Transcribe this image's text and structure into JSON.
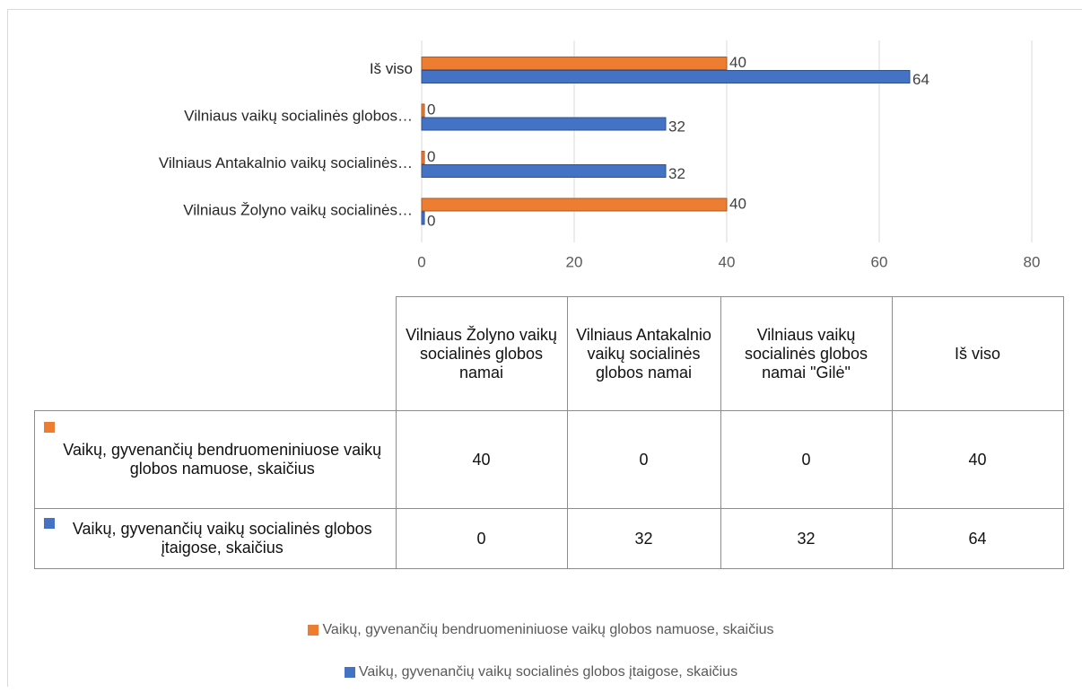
{
  "chart_data": {
    "type": "hbar",
    "categories": [
      "Vilniaus Žolyno vaikų socialinės globos namai",
      "Vilniaus Antakalnio vaikų socialinės globos namai",
      "Vilniaus vaikų socialinės globos namai \"Gilė\"",
      "Iš viso"
    ],
    "category_labels": [
      "Vilniaus Žolyno vaikų socialinės…",
      "Vilniaus Antakalnio vaikų socialinės…",
      "Vilniaus vaikų socialinės globos…",
      "Iš viso"
    ],
    "series": [
      {
        "name": "Vaikų, gyvenančių bendruomeniniuose vaikų globos namuose, skaičius",
        "color": "#ed7d31",
        "values": [
          40,
          0,
          0,
          40
        ]
      },
      {
        "name": "Vaikų, gyvenančių vaikų socialinės globos įtaigose, skaičius",
        "color": "#4472c4",
        "values": [
          0,
          32,
          32,
          64
        ]
      }
    ],
    "xlim": [
      0,
      80
    ],
    "xticks": [
      0,
      20,
      40,
      60,
      80
    ],
    "grid": true,
    "data_table": true,
    "legend": "bottom"
  }
}
